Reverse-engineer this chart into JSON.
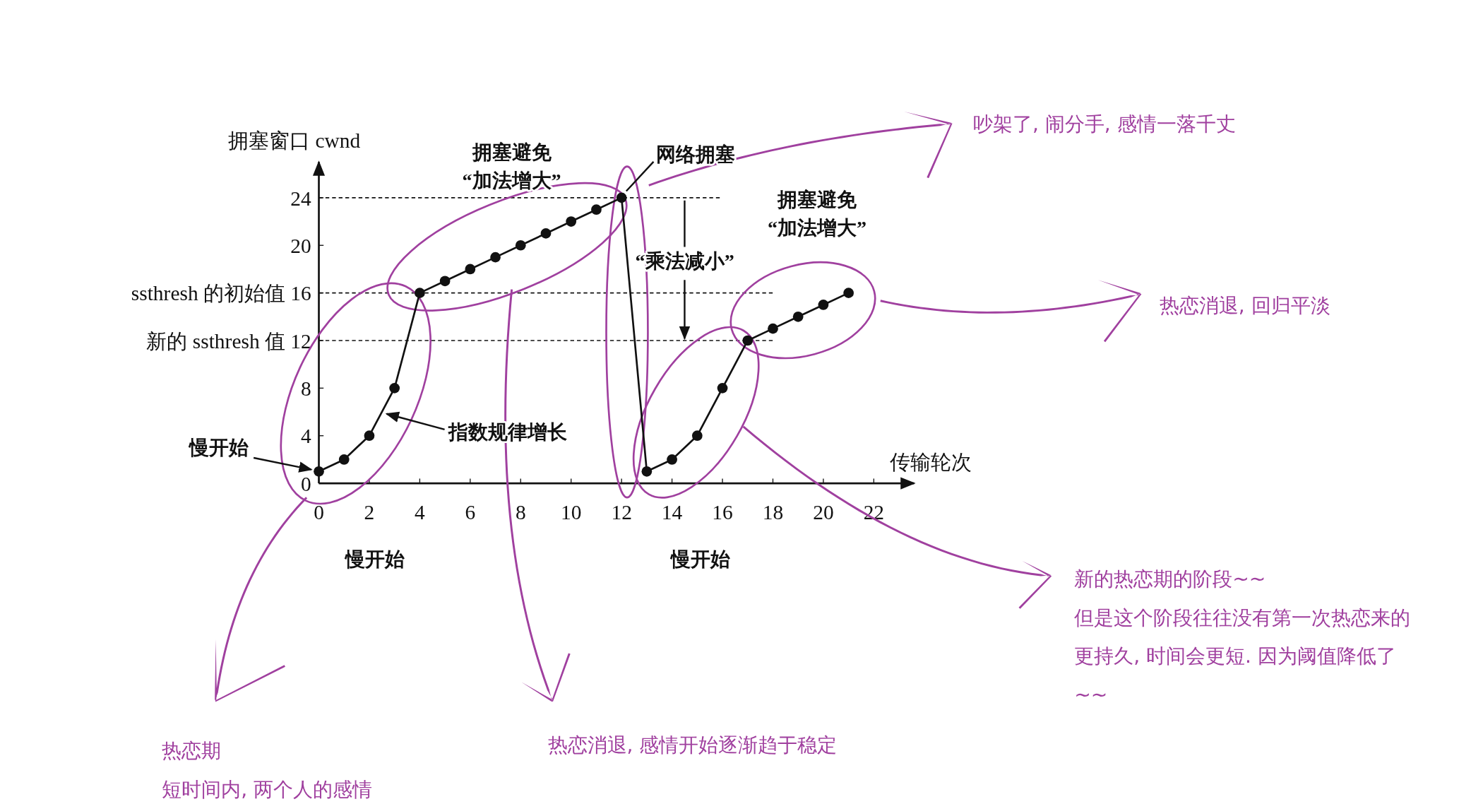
{
  "chart_data": {
    "type": "line",
    "xlabel": "传输轮次",
    "ylabel": "拥塞窗口 cwnd",
    "x": [
      0,
      1,
      2,
      3,
      4,
      5,
      6,
      7,
      8,
      9,
      10,
      11,
      12,
      13,
      14,
      15,
      16,
      17,
      18,
      19,
      20,
      21
    ],
    "series": [
      {
        "color": "#111111",
        "values": [
          1,
          2,
          4,
          8,
          16,
          17,
          18,
          19,
          20,
          21,
          22,
          23,
          24,
          1,
          2,
          4,
          8,
          12,
          13,
          14,
          15,
          16
        ]
      }
    ],
    "xlim": [
      0,
      23.6
    ],
    "ylim": [
      0,
      27
    ],
    "xticks": [
      0,
      2,
      4,
      6,
      8,
      10,
      12,
      14,
      16,
      18,
      20,
      22
    ],
    "yticks": [
      0,
      4,
      8,
      {
        "value": 12,
        "label": "新的 ssthresh 值 12"
      },
      {
        "value": 16,
        "label": "ssthresh 的初始值 16"
      },
      20,
      24
    ],
    "ref_lines": [
      {
        "axis": "y",
        "value": 24,
        "line_style": "dashed",
        "color": "#111111"
      },
      {
        "axis": "y",
        "value": 16,
        "line_style": "dashed",
        "color": "#111111"
      },
      {
        "axis": "y",
        "value": 12,
        "line_style": "dashed",
        "color": "#111111"
      }
    ],
    "marker": "circle",
    "line_style": "solid",
    "annotations": [
      "拥塞避免“加法增大”",
      {
        "text": "网络拥塞",
        "x": 12,
        "y": 24
      },
      {
        "text": "“乘法减小”",
        "x": 14.5,
        "y": 12
      },
      "拥塞避免“加法增大”",
      {
        "text": "指数规律增长",
        "x": 2.5,
        "y": 6
      },
      "慢开始",
      "慢开始",
      "慢开始",
      "吵架了, 闹分手, 感情一落千丈",
      "热恋消退, 回归平淡",
      "新的热恋期的阶段~~但是这个阶段往往没有第一次热恋来的更持久, 时间会更短. 因为阈值降低了~~",
      "热恋消退, 感情开始逐渐趋于稳定",
      "热恋期短时间内, 两个人的感情"
    ]
  }
}
